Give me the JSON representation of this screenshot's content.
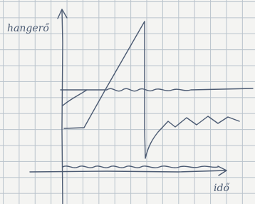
{
  "axes": {
    "y_label": "hangerő",
    "x_label": "idő"
  }
}
